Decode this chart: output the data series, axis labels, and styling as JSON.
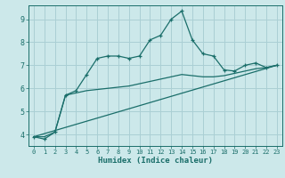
{
  "xlabel": "Humidex (Indice chaleur)",
  "background_color": "#cce8ea",
  "grid_color": "#aacfd4",
  "line_color": "#1a6e6a",
  "xlim": [
    -0.5,
    23.5
  ],
  "ylim": [
    3.5,
    9.6
  ],
  "yticks": [
    4,
    5,
    6,
    7,
    8,
    9
  ],
  "xticks": [
    0,
    1,
    2,
    3,
    4,
    5,
    6,
    7,
    8,
    9,
    10,
    11,
    12,
    13,
    14,
    15,
    16,
    17,
    18,
    19,
    20,
    21,
    22,
    23
  ],
  "series1_x": [
    0,
    1,
    2,
    3,
    4,
    5,
    6,
    7,
    8,
    9,
    10,
    11,
    12,
    13,
    14,
    15,
    16,
    17,
    18,
    19,
    20,
    21,
    22,
    23
  ],
  "series1_y": [
    3.9,
    3.8,
    4.1,
    5.7,
    5.9,
    6.6,
    7.3,
    7.4,
    7.4,
    7.3,
    7.4,
    8.1,
    8.3,
    9.0,
    9.35,
    8.1,
    7.5,
    7.4,
    6.8,
    6.75,
    7.0,
    7.1,
    6.9,
    7.0
  ],
  "series2_x": [
    0,
    1,
    2,
    3,
    4,
    5,
    6,
    7,
    8,
    9,
    10,
    11,
    12,
    13,
    14,
    15,
    16,
    17,
    18,
    19,
    20,
    21,
    22,
    23
  ],
  "series2_y": [
    3.9,
    3.9,
    4.1,
    5.7,
    5.8,
    5.9,
    5.95,
    6.0,
    6.05,
    6.1,
    6.2,
    6.3,
    6.4,
    6.5,
    6.6,
    6.55,
    6.5,
    6.5,
    6.55,
    6.65,
    6.75,
    6.85,
    6.9,
    7.0
  ],
  "series3_x": [
    0,
    23
  ],
  "series3_y": [
    3.9,
    7.0
  ]
}
